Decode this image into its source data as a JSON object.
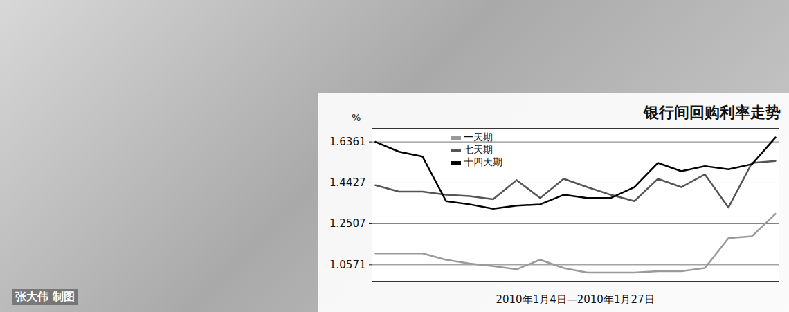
{
  "chart_data": {
    "type": "line",
    "title": "银行间回购利率走势",
    "credit": "张大伟 制图",
    "xlabel": "2010年1月4日—2010年1月27日",
    "ylabel": "%",
    "categories": [
      null,
      null,
      null,
      null,
      null,
      null,
      null,
      null,
      null,
      null,
      null,
      null,
      null,
      null,
      null,
      null,
      null,
      null
    ],
    "series": [
      {
        "name": "一天期",
        "color": "#9a9a9a",
        "values": [
          1.111,
          1.111,
          1.111,
          1.081,
          1.063,
          1.051,
          1.036,
          1.081,
          1.042,
          1.021,
          1.021,
          1.021,
          1.027,
          1.027,
          1.042,
          1.183,
          1.192,
          1.297
        ]
      },
      {
        "name": "七天期",
        "color": "#555555",
        "values": [
          1.432,
          1.402,
          1.402,
          1.387,
          1.381,
          1.366,
          1.456,
          1.372,
          1.462,
          1.423,
          1.387,
          1.357,
          1.462,
          1.423,
          1.483,
          1.327,
          1.537,
          1.546
        ]
      },
      {
        "name": "十四天期",
        "color": "#000000",
        "values": [
          1.636,
          1.59,
          1.567,
          1.357,
          1.342,
          1.321,
          1.336,
          1.342,
          1.387,
          1.372,
          1.372,
          1.423,
          1.537,
          1.498,
          1.522,
          1.507,
          1.531,
          1.657
        ]
      }
    ],
    "ylim": [
      0.98,
      1.7
    ],
    "yticks": [
      1.0571,
      1.2507,
      1.4427,
      1.6361
    ],
    "grid": true,
    "legend": "upper left",
    "tick_labels": "y"
  }
}
